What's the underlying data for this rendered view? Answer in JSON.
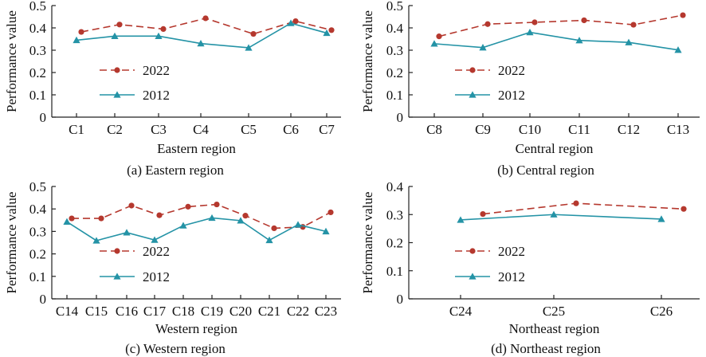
{
  "colors": {
    "series_2022": "#b5382e",
    "series_2012": "#2493a6",
    "axis": "#222222"
  },
  "chart_data": [
    {
      "type": "line",
      "id": "eastern",
      "caption": "(a) Eastern region",
      "xlabel": "Eastern region",
      "ylabel": "Performance value",
      "categories": [
        "C1",
        "C2",
        "C3",
        "C4",
        "C5",
        "C6",
        "C7"
      ],
      "ylim": [
        0,
        0.5
      ],
      "yticks": [
        "0",
        "0.1",
        "0.2",
        "0.3",
        "0.4",
        "0.5"
      ],
      "legend": "left-middle",
      "series": [
        {
          "name": "2022",
          "marker": "circle",
          "dash": true,
          "values": [
            0.382,
            0.415,
            0.395,
            0.443,
            0.373,
            0.43,
            0.39
          ]
        },
        {
          "name": "2012",
          "marker": "triangle",
          "dash": false,
          "values": [
            0.345,
            0.363,
            0.363,
            0.33,
            0.311,
            0.421,
            0.377
          ]
        }
      ]
    },
    {
      "type": "line",
      "id": "central",
      "caption": "(b) Central region",
      "xlabel": "Central region",
      "ylabel": "Performance value",
      "categories": [
        "C8",
        "C9",
        "C10",
        "C11",
        "C12",
        "C13"
      ],
      "ylim": [
        0,
        0.5
      ],
      "yticks": [
        "0",
        "0.1",
        "0.2",
        "0.3",
        "0.4",
        "0.5"
      ],
      "legend": "left-middle",
      "series": [
        {
          "name": "2022",
          "marker": "circle",
          "dash": true,
          "values": [
            0.362,
            0.417,
            0.425,
            0.434,
            0.414,
            0.457
          ]
        },
        {
          "name": "2012",
          "marker": "triangle",
          "dash": false,
          "values": [
            0.329,
            0.312,
            0.38,
            0.344,
            0.335,
            0.301
          ]
        }
      ]
    },
    {
      "type": "line",
      "id": "western",
      "caption": "(c) Western region",
      "xlabel": "Western region",
      "ylabel": "Performance value",
      "categories": [
        "C14",
        "C15",
        "C16",
        "C17",
        "C18",
        "C19",
        "C20",
        "C21",
        "C22",
        "C23"
      ],
      "ylim": [
        0,
        0.5
      ],
      "yticks": [
        "0",
        "0.1",
        "0.2",
        "0.3",
        "0.4",
        "0.5"
      ],
      "legend": "left-middle",
      "series": [
        {
          "name": "2022",
          "marker": "circle",
          "dash": true,
          "values": [
            0.358,
            0.358,
            0.415,
            0.372,
            0.41,
            0.42,
            0.37,
            0.314,
            0.32,
            0.385
          ]
        },
        {
          "name": "2012",
          "marker": "triangle",
          "dash": false,
          "values": [
            0.343,
            0.259,
            0.295,
            0.262,
            0.326,
            0.36,
            0.348,
            0.261,
            0.33,
            0.3
          ]
        }
      ]
    },
    {
      "type": "line",
      "id": "northeast",
      "caption": "(d) Northeast region",
      "xlabel": "Northeast region",
      "ylabel": "Performance value",
      "categories": [
        "C24",
        "C25",
        "C26"
      ],
      "ylim": [
        0,
        0.4
      ],
      "yticks": [
        "0",
        "0.1",
        "0.2",
        "0.3",
        "0.4"
      ],
      "legend": "left-middle",
      "series": [
        {
          "name": "2022",
          "marker": "circle",
          "dash": true,
          "values": [
            0.302,
            0.34,
            0.32
          ]
        },
        {
          "name": "2012",
          "marker": "triangle",
          "dash": false,
          "values": [
            0.281,
            0.3,
            0.284
          ]
        }
      ]
    }
  ]
}
